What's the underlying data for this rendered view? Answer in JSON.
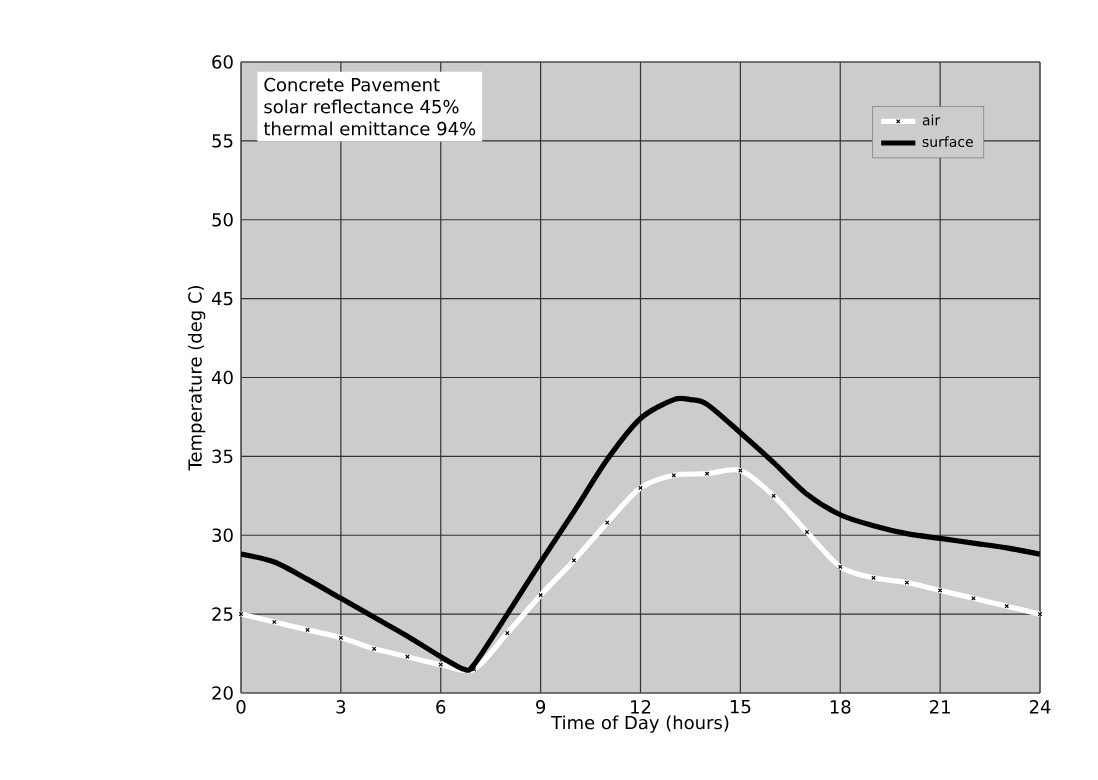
{
  "chart_data": {
    "type": "line",
    "xlabel": "Time of Day (hours)",
    "ylabel": "Temperature (deg C)",
    "xlim": [
      0,
      24
    ],
    "xticks": [
      0,
      3,
      6,
      9,
      12,
      15,
      18,
      21,
      24
    ],
    "ylim": [
      20,
      60
    ],
    "yticks": [
      20,
      25,
      30,
      35,
      40,
      45,
      50,
      55,
      60
    ],
    "grid": true,
    "legend": "top right",
    "line_style": "solid",
    "annotations": [
      "Concrete Pavement",
      "solar reflectance 45%",
      "thermal emittance 94%"
    ],
    "series": [
      {
        "name": "air",
        "color": "#ffffff",
        "marker": "cross",
        "x": [
          0,
          1,
          2,
          3,
          4,
          5,
          6,
          7,
          8,
          9,
          10,
          11,
          12,
          13,
          14,
          15,
          16,
          17,
          18,
          19,
          20,
          21,
          22,
          23,
          24
        ],
        "values": [
          25,
          24.5,
          24,
          23.5,
          22.8,
          22.3,
          21.8,
          21.5,
          23.8,
          26.2,
          28.4,
          30.8,
          33,
          33.8,
          33.9,
          34.1,
          32.5,
          30.2,
          28,
          27.3,
          27,
          26.5,
          26,
          25.5,
          25
        ]
      },
      {
        "name": "surface",
        "color": "#000000",
        "marker": "none",
        "x": [
          0,
          1,
          2,
          3,
          4,
          5,
          6,
          6.7,
          7,
          8,
          9,
          10,
          11,
          12,
          13,
          13.5,
          14,
          15,
          16,
          17,
          18,
          19,
          20,
          21,
          22,
          23,
          24
        ],
        "values": [
          28.8,
          28.3,
          27.2,
          26,
          24.8,
          23.6,
          22.3,
          21.5,
          21.8,
          25,
          28.3,
          31.5,
          34.8,
          37.4,
          38.6,
          38.6,
          38.3,
          36.5,
          34.6,
          32.6,
          31.3,
          30.6,
          30.1,
          29.8,
          29.5,
          29.2,
          28.8
        ]
      }
    ]
  }
}
